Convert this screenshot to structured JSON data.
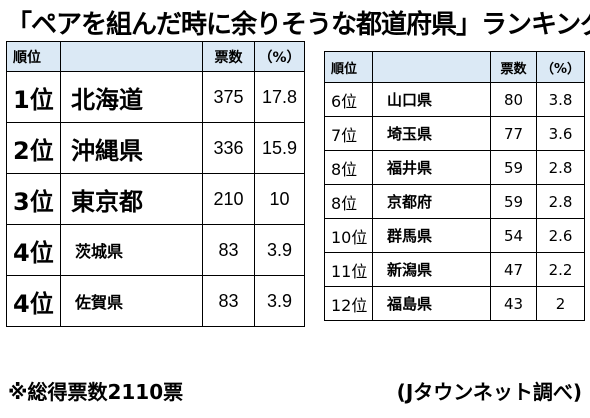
{
  "title": "「ペアを組んだ時に余りそうな都道府県」ランキング",
  "left_table": {
    "headers": {
      "rank": "順位",
      "votes": "票数",
      "percent": "（%）"
    },
    "rows": [
      {
        "rank": "1位",
        "pref": "北海道",
        "votes": "375",
        "percent": "17.8"
      },
      {
        "rank": "2位",
        "pref": "沖縄県",
        "votes": "336",
        "percent": "15.9"
      },
      {
        "rank": "3位",
        "pref": "東京都",
        "votes": "210",
        "percent": "10"
      },
      {
        "rank": "4位",
        "pref": "茨城県",
        "votes": "83",
        "percent": "3.9"
      },
      {
        "rank": "4位",
        "pref": "佐賀県",
        "votes": "83",
        "percent": "3.9"
      }
    ]
  },
  "right_table": {
    "headers": {
      "rank": "順位",
      "votes": "票数",
      "percent": "（%）"
    },
    "rows": [
      {
        "rank": "6位",
        "pref": "山口県",
        "votes": "80",
        "percent": "3.8"
      },
      {
        "rank": "7位",
        "pref": "埼玉県",
        "votes": "77",
        "percent": "3.6"
      },
      {
        "rank": "8位",
        "pref": "福井県",
        "votes": "59",
        "percent": "2.8"
      },
      {
        "rank": "8位",
        "pref": "京都府",
        "votes": "59",
        "percent": "2.8"
      },
      {
        "rank": "10位",
        "pref": "群馬県",
        "votes": "54",
        "percent": "2.6"
      },
      {
        "rank": "11位",
        "pref": "新潟県",
        "votes": "47",
        "percent": "2.2"
      },
      {
        "rank": "12位",
        "pref": "福島県",
        "votes": "43",
        "percent": "2"
      }
    ]
  },
  "note": "※総得票数2110票",
  "source": "(Jタウンネット調べ)",
  "colors": {
    "header_bg": "#dbe9f5"
  }
}
